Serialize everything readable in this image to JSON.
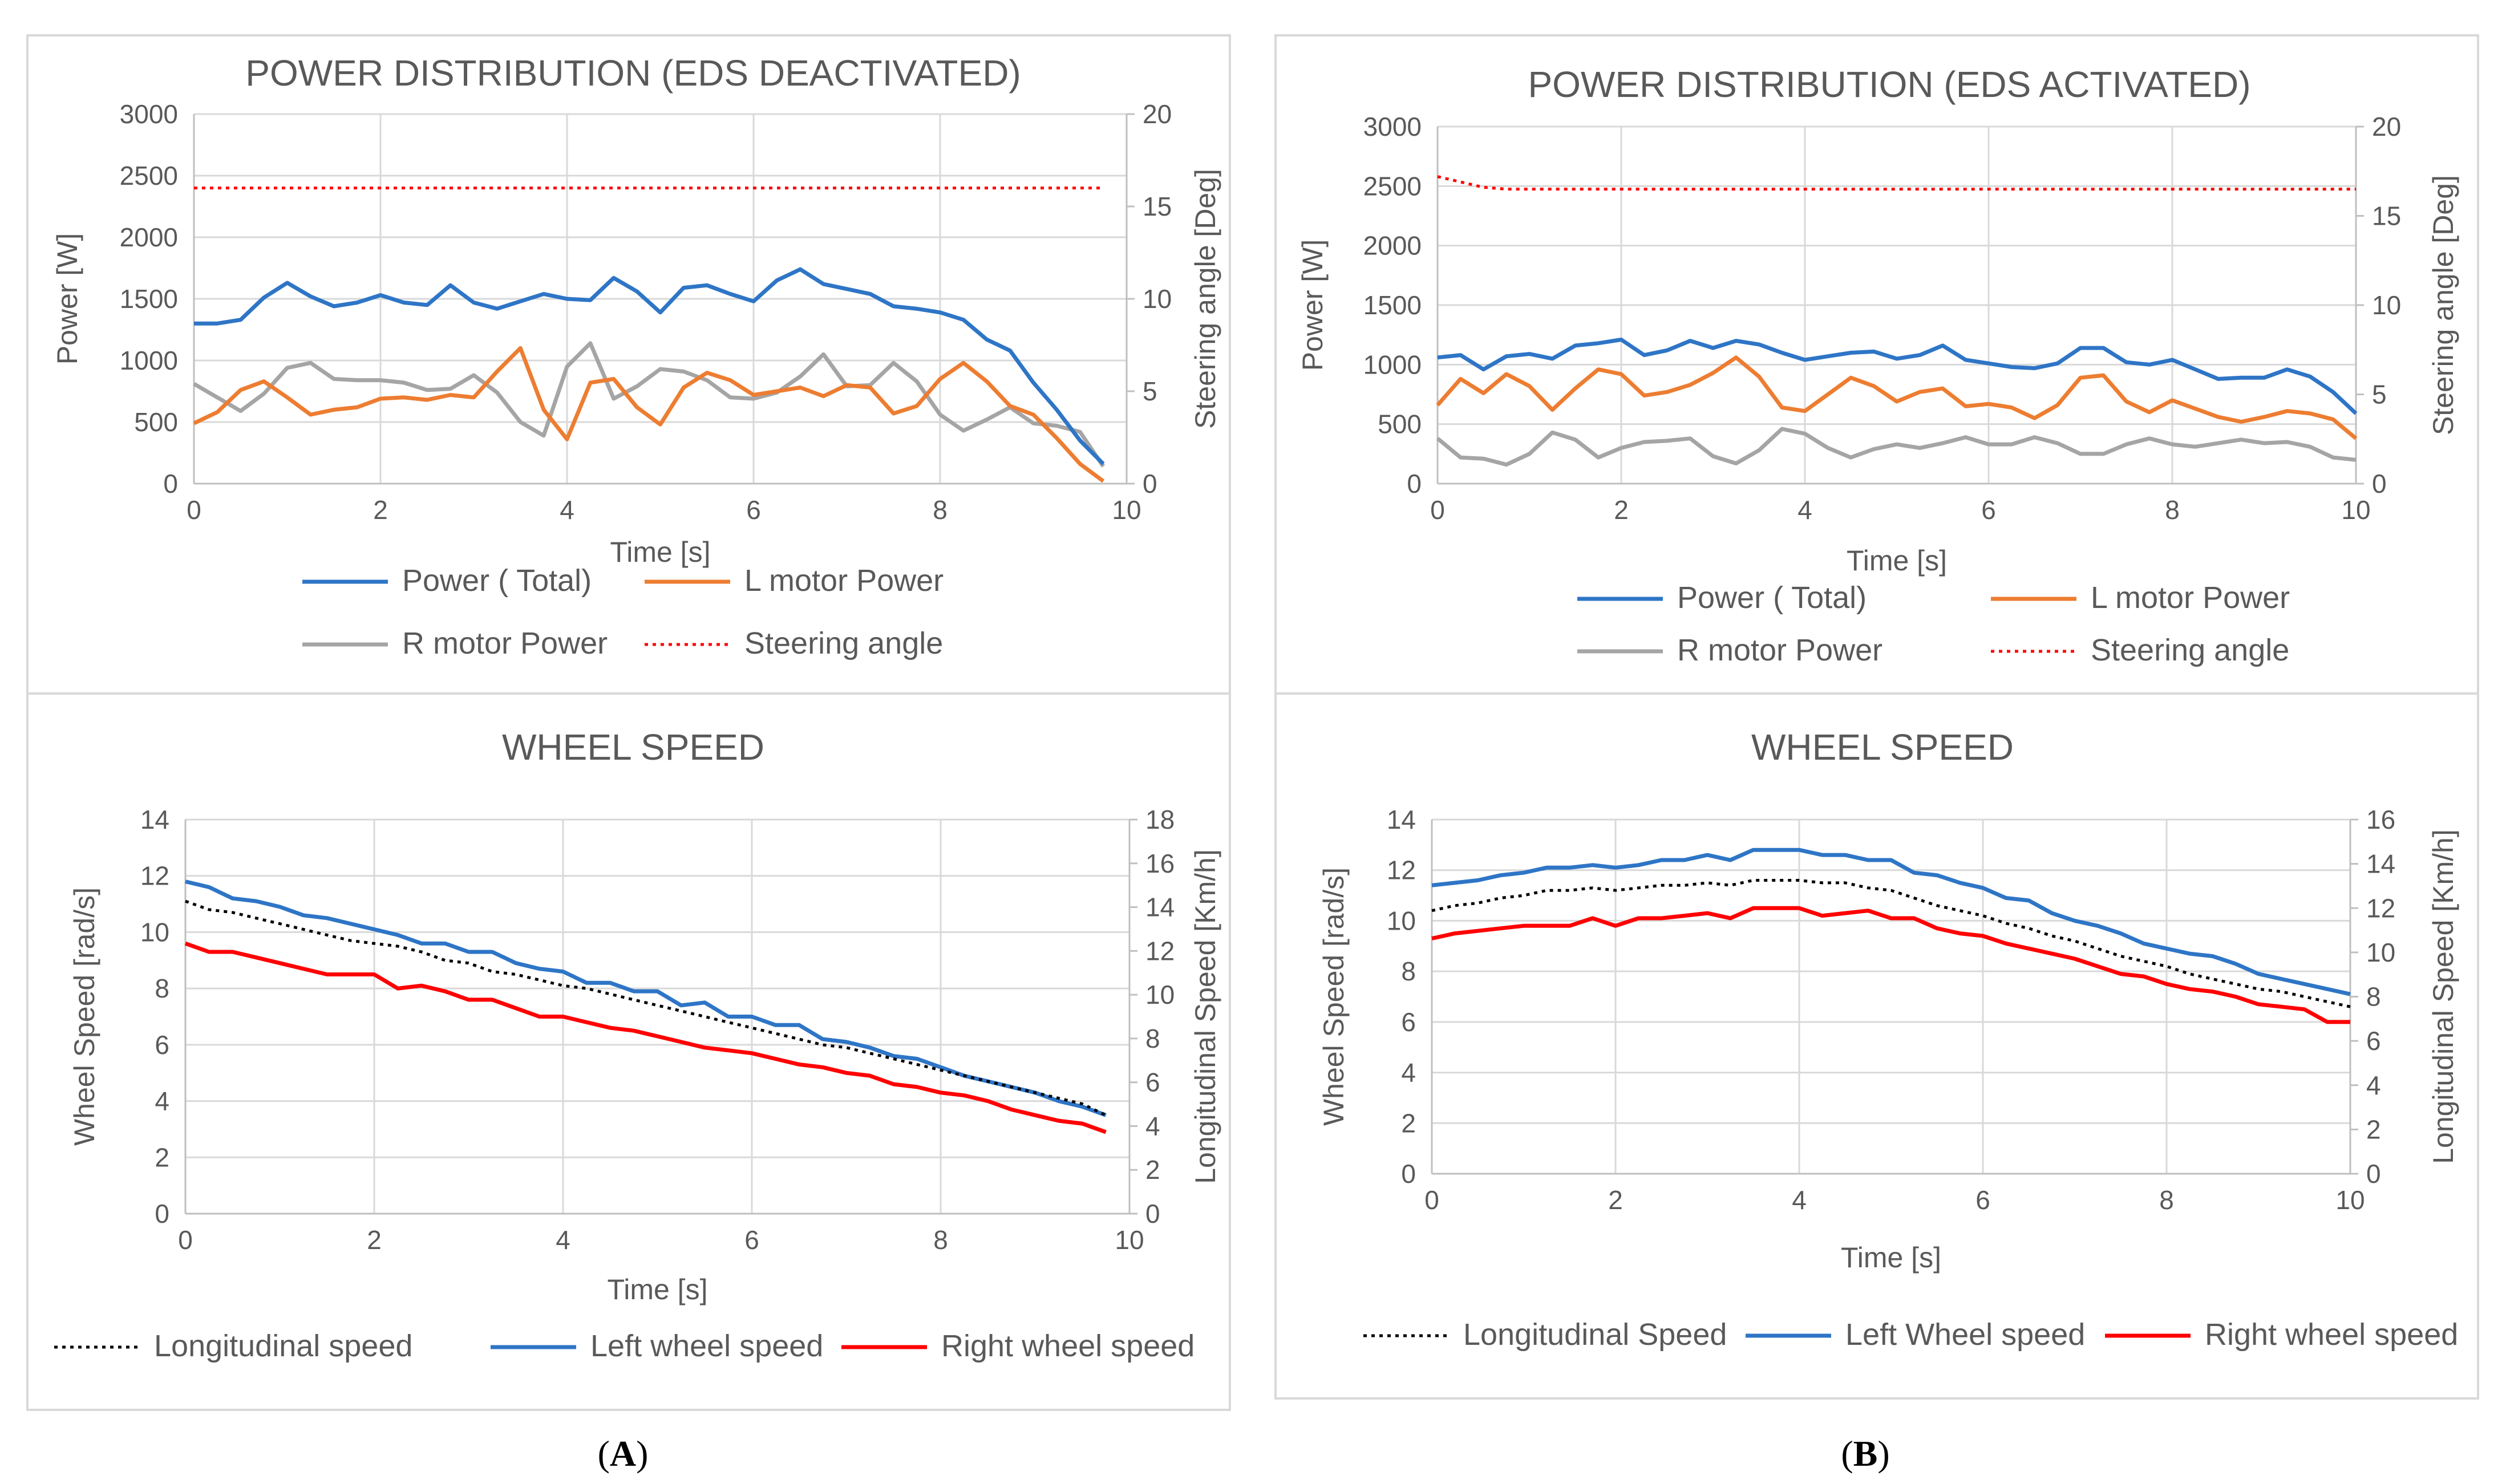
{
  "figure_labels": {
    "A": {
      "open": "(",
      "letter": "A",
      "close": ")"
    },
    "B": {
      "open": "(",
      "letter": "B",
      "close": ")"
    }
  },
  "colors": {
    "total": "#2E75C6",
    "lmotor": "#ED7D31",
    "rmotor": "#A5A5A5",
    "steer": "#FF0000",
    "left_wheel": "#2E75C6",
    "right_wheel": "#FF0000",
    "longitudinal": "#000000",
    "grid": "#D9D9D9",
    "border": "#D9D9D9"
  },
  "chart_data": [
    {
      "id": "powerA",
      "type": "line",
      "title": "POWER DISTRIBUTION (EDS DEACTIVATED)",
      "xlabel": "Time [s]",
      "ylabel": "Power [W]",
      "y2label": "Steering angle [Deg]",
      "xlim": [
        0,
        10
      ],
      "xticks": [
        0,
        2,
        4,
        6,
        8,
        10
      ],
      "ylim": [
        0,
        3000
      ],
      "yticks": [
        0,
        500,
        1000,
        1500,
        2000,
        2500,
        3000
      ],
      "y2lim": [
        0,
        20
      ],
      "y2ticks": [
        0,
        5,
        10,
        15,
        20
      ],
      "legend_rows": [
        [
          "total",
          "lmotor"
        ],
        [
          "rmotor",
          "steer"
        ]
      ],
      "series": [
        {
          "key": "total",
          "name": "Power ( Total)",
          "axis": "y",
          "style": "solid",
          "x_end": 9.75,
          "values": [
            1300,
            1300,
            1330,
            1510,
            1630,
            1520,
            1440,
            1470,
            1530,
            1470,
            1450,
            1610,
            1470,
            1420,
            1480,
            1540,
            1500,
            1490,
            1670,
            1560,
            1390,
            1590,
            1610,
            1540,
            1480,
            1650,
            1740,
            1620,
            1580,
            1540,
            1440,
            1420,
            1390,
            1330,
            1170,
            1080,
            820,
            600,
            350,
            160
          ]
        },
        {
          "key": "lmotor",
          "name": "L motor Power",
          "axis": "y",
          "style": "solid",
          "x_end": 9.75,
          "values": [
            490,
            580,
            760,
            830,
            700,
            560,
            600,
            620,
            690,
            700,
            680,
            720,
            700,
            910,
            1100,
            600,
            360,
            820,
            850,
            620,
            480,
            780,
            900,
            840,
            720,
            750,
            780,
            710,
            800,
            780,
            570,
            630,
            850,
            980,
            830,
            630,
            560,
            370,
            160,
            20
          ]
        },
        {
          "key": "rmotor",
          "name": "R motor Power",
          "axis": "y",
          "style": "solid",
          "x_end": 9.75,
          "values": [
            810,
            700,
            590,
            730,
            940,
            980,
            850,
            840,
            840,
            820,
            760,
            770,
            880,
            740,
            500,
            390,
            950,
            1140,
            690,
            790,
            930,
            910,
            840,
            700,
            690,
            740,
            870,
            1050,
            790,
            800,
            980,
            830,
            560,
            430,
            520,
            620,
            490,
            470,
            420,
            140
          ]
        },
        {
          "key": "steer",
          "name": "Steering angle",
          "axis": "y2",
          "style": "dotted",
          "x_end": 9.75,
          "values": [
            16,
            16
          ]
        }
      ]
    },
    {
      "id": "powerB",
      "type": "line",
      "title": "POWER DISTRIBUTION (EDS ACTIVATED)",
      "xlabel": "Time [s]",
      "ylabel": "Power [W]",
      "y2label": "Steering angle [Deg]",
      "xlim": [
        0,
        10
      ],
      "xticks": [
        0,
        2,
        4,
        6,
        8,
        10
      ],
      "ylim": [
        0,
        3000
      ],
      "yticks": [
        0,
        500,
        1000,
        1500,
        2000,
        2500,
        3000
      ],
      "y2lim": [
        0,
        20
      ],
      "y2ticks": [
        0,
        5,
        10,
        15,
        20
      ],
      "legend_rows": [
        [
          "total",
          "lmotor"
        ],
        [
          "rmotor",
          "steer"
        ]
      ],
      "series": [
        {
          "key": "total",
          "name": "Power ( Total)",
          "axis": "y",
          "style": "solid",
          "x_end": 10,
          "values": [
            1060,
            1080,
            960,
            1070,
            1090,
            1050,
            1160,
            1180,
            1210,
            1080,
            1120,
            1200,
            1140,
            1200,
            1170,
            1100,
            1040,
            1070,
            1100,
            1110,
            1050,
            1080,
            1160,
            1040,
            1010,
            980,
            970,
            1010,
            1140,
            1140,
            1020,
            1000,
            1040,
            960,
            880,
            890,
            890,
            960,
            900,
            770,
            590
          ]
        },
        {
          "key": "lmotor",
          "name": "L motor Power",
          "axis": "y",
          "style": "solid",
          "x_end": 10,
          "values": [
            660,
            880,
            760,
            920,
            820,
            620,
            800,
            960,
            920,
            740,
            770,
            830,
            930,
            1060,
            900,
            640,
            610,
            750,
            890,
            820,
            690,
            770,
            800,
            650,
            670,
            640,
            550,
            660,
            890,
            910,
            690,
            600,
            700,
            630,
            560,
            520,
            560,
            610,
            590,
            540,
            380
          ]
        },
        {
          "key": "rmotor",
          "name": "R motor Power",
          "axis": "y",
          "style": "solid",
          "x_end": 10,
          "values": [
            380,
            220,
            210,
            160,
            250,
            430,
            370,
            220,
            300,
            350,
            360,
            380,
            230,
            170,
            280,
            460,
            420,
            300,
            220,
            290,
            330,
            300,
            340,
            390,
            330,
            330,
            390,
            340,
            250,
            250,
            330,
            380,
            330,
            310,
            340,
            370,
            340,
            350,
            310,
            220,
            200
          ]
        },
        {
          "key": "steer",
          "name": "Steering angle",
          "axis": "y2",
          "style": "dotted",
          "x_end": 10,
          "values": [
            17.2,
            16.9,
            16.6,
            16.5,
            16.5,
            16.5,
            16.5,
            16.5,
            16.5,
            16.5,
            16.5,
            16.5,
            16.5,
            16.5,
            16.5,
            16.5,
            16.5,
            16.5,
            16.5,
            16.5,
            16.5,
            16.5,
            16.5,
            16.5,
            16.5,
            16.5,
            16.5,
            16.5,
            16.5,
            16.5,
            16.5,
            16.5,
            16.5,
            16.5,
            16.5,
            16.5,
            16.5,
            16.5,
            16.5,
            16.5,
            16.5
          ]
        }
      ]
    },
    {
      "id": "speedA",
      "type": "line",
      "title": "WHEEL SPEED",
      "xlabel": "Time [s]",
      "ylabel": "Wheel Speed [rad/s]",
      "y2label": "Longitudinal Speed [Km/h]",
      "xlim": [
        0,
        10
      ],
      "xticks": [
        0,
        2,
        4,
        6,
        8,
        10
      ],
      "ylim": [
        0,
        14
      ],
      "yticks": [
        0,
        2,
        4,
        6,
        8,
        10,
        12,
        14
      ],
      "y2lim": [
        0,
        18
      ],
      "y2ticks": [
        0,
        2,
        4,
        6,
        8,
        10,
        12,
        14,
        16,
        18
      ],
      "legend_rows": [
        [
          "longitudinal",
          "left_wheel",
          "right_wheel"
        ]
      ],
      "series": [
        {
          "key": "longitudinal",
          "name": "Longitudinal speed",
          "axis": "y",
          "style": "dotted",
          "x_end": 9.75,
          "values": [
            11.1,
            10.8,
            10.7,
            10.5,
            10.3,
            10.1,
            9.9,
            9.7,
            9.6,
            9.5,
            9.3,
            9.0,
            8.9,
            8.6,
            8.5,
            8.3,
            8.1,
            8.0,
            7.8,
            7.6,
            7.4,
            7.2,
            7.0,
            6.8,
            6.6,
            6.4,
            6.2,
            6.0,
            5.9,
            5.7,
            5.5,
            5.3,
            5.1,
            4.9,
            4.7,
            4.5,
            4.3,
            4.1,
            3.9,
            3.5
          ]
        },
        {
          "key": "left_wheel",
          "name": "Left wheel speed",
          "axis": "y",
          "style": "solid",
          "x_end": 9.75,
          "values": [
            11.8,
            11.6,
            11.2,
            11.1,
            10.9,
            10.6,
            10.5,
            10.3,
            10.1,
            9.9,
            9.6,
            9.6,
            9.3,
            9.3,
            8.9,
            8.7,
            8.6,
            8.2,
            8.2,
            7.9,
            7.9,
            7.4,
            7.5,
            7.0,
            7.0,
            6.7,
            6.7,
            6.2,
            6.1,
            5.9,
            5.6,
            5.5,
            5.2,
            4.9,
            4.7,
            4.5,
            4.3,
            4.0,
            3.8,
            3.5
          ]
        },
        {
          "key": "right_wheel",
          "name": "Right wheel speed",
          "axis": "y",
          "style": "solid",
          "x_end": 9.75,
          "values": [
            9.6,
            9.3,
            9.3,
            9.1,
            8.9,
            8.7,
            8.5,
            8.5,
            8.5,
            8.0,
            8.1,
            7.9,
            7.6,
            7.6,
            7.3,
            7.0,
            7.0,
            6.8,
            6.6,
            6.5,
            6.3,
            6.1,
            5.9,
            5.8,
            5.7,
            5.5,
            5.3,
            5.2,
            5.0,
            4.9,
            4.6,
            4.5,
            4.3,
            4.2,
            4.0,
            3.7,
            3.5,
            3.3,
            3.2,
            2.9
          ]
        }
      ]
    },
    {
      "id": "speedB",
      "type": "line",
      "title": "WHEEL SPEED",
      "xlabel": "Time [s]",
      "ylabel": "Wheel Speed [rad/s]",
      "y2label": "Longitudinal Speed [Km/h]",
      "xlim": [
        0,
        10
      ],
      "xticks": [
        0,
        2,
        4,
        6,
        8,
        10
      ],
      "ylim": [
        0,
        14
      ],
      "yticks": [
        0,
        2,
        4,
        6,
        8,
        10,
        12,
        14
      ],
      "y2lim": [
        0,
        16
      ],
      "y2ticks": [
        0,
        2,
        4,
        6,
        8,
        10,
        12,
        14,
        16
      ],
      "legend_rows": [
        [
          "longitudinal",
          "left_wheel",
          "right_wheel"
        ]
      ],
      "series": [
        {
          "key": "longitudinal",
          "name": "Longitudinal Speed",
          "axis": "y",
          "style": "dotted",
          "x_end": 10,
          "values": [
            10.4,
            10.6,
            10.7,
            10.9,
            11.0,
            11.2,
            11.2,
            11.3,
            11.2,
            11.3,
            11.4,
            11.4,
            11.5,
            11.4,
            11.6,
            11.6,
            11.6,
            11.5,
            11.5,
            11.3,
            11.2,
            10.9,
            10.6,
            10.4,
            10.2,
            9.9,
            9.7,
            9.4,
            9.2,
            8.9,
            8.6,
            8.4,
            8.2,
            7.9,
            7.7,
            7.5,
            7.3,
            7.2,
            7.0,
            6.8,
            6.6
          ]
        },
        {
          "key": "left_wheel",
          "name": "Left Wheel speed",
          "axis": "y",
          "style": "solid",
          "x_end": 10,
          "values": [
            11.4,
            11.5,
            11.6,
            11.8,
            11.9,
            12.1,
            12.1,
            12.2,
            12.1,
            12.2,
            12.4,
            12.4,
            12.6,
            12.4,
            12.8,
            12.8,
            12.8,
            12.6,
            12.6,
            12.4,
            12.4,
            11.9,
            11.8,
            11.5,
            11.3,
            10.9,
            10.8,
            10.3,
            10.0,
            9.8,
            9.5,
            9.1,
            8.9,
            8.7,
            8.6,
            8.3,
            7.9,
            7.7,
            7.5,
            7.3,
            7.1
          ]
        },
        {
          "key": "right_wheel",
          "name": "Right wheel speed",
          "axis": "y",
          "style": "solid",
          "x_end": 10,
          "values": [
            9.3,
            9.5,
            9.6,
            9.7,
            9.8,
            9.8,
            9.8,
            10.1,
            9.8,
            10.1,
            10.1,
            10.2,
            10.3,
            10.1,
            10.5,
            10.5,
            10.5,
            10.2,
            10.3,
            10.4,
            10.1,
            10.1,
            9.7,
            9.5,
            9.4,
            9.1,
            8.9,
            8.7,
            8.5,
            8.2,
            7.9,
            7.8,
            7.5,
            7.3,
            7.2,
            7.0,
            6.7,
            6.6,
            6.5,
            6.0,
            6.0
          ]
        }
      ]
    }
  ]
}
